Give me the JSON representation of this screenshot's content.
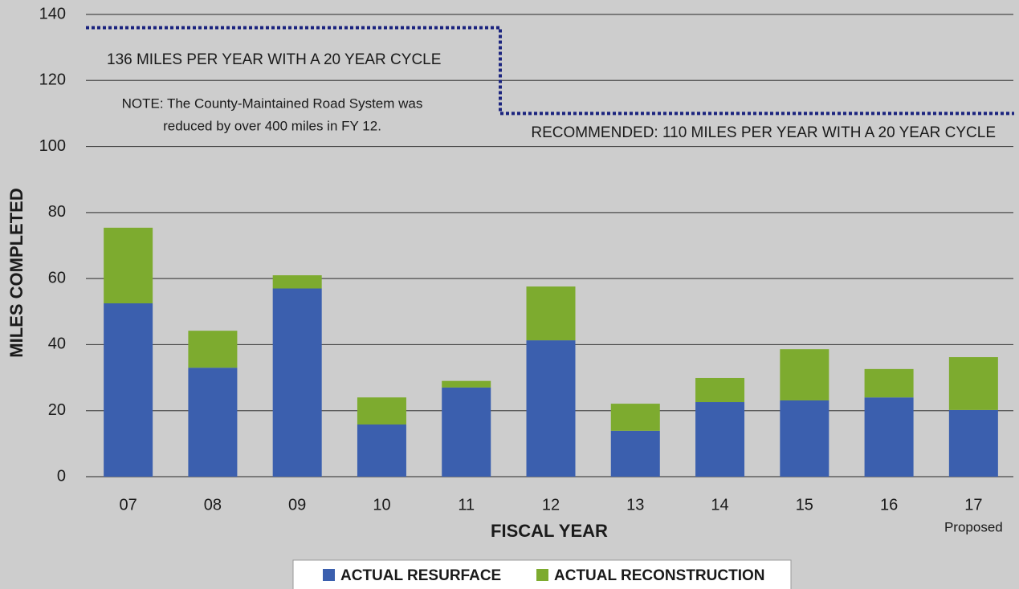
{
  "chart_data": {
    "type": "bar",
    "stacked": true,
    "y_label": "MILES COMPLETED",
    "x_label": "FISCAL YEAR",
    "categories": [
      "07",
      "08",
      "09",
      "10",
      "11",
      "12",
      "13",
      "14",
      "15",
      "16",
      "17"
    ],
    "category_note": {
      "index": 10,
      "text": "Proposed"
    },
    "series": [
      {
        "name": "ACTUAL RESURFACE",
        "color": "#3b5fae",
        "values": [
          52.5,
          33,
          57,
          15.8,
          27,
          41.3,
          13.9,
          22.6,
          23.1,
          24,
          20.2
        ]
      },
      {
        "name": "ACTUAL RECONSTRUCTION",
        "color": "#7dab2f",
        "values": [
          22.9,
          11.2,
          4,
          8.2,
          2,
          16.3,
          8.2,
          7.3,
          15.5,
          8.6,
          16
        ]
      }
    ],
    "ylim": [
      0,
      140
    ],
    "yticks": [
      0,
      20,
      40,
      60,
      80,
      100,
      120,
      140
    ],
    "grid": true,
    "reference_lines": [
      {
        "value": 136,
        "label": "136 MILES PER YEAR WITH A 20 YEAR CYCLE",
        "color": "#1a237e"
      },
      {
        "value": 110,
        "label": "RECOMMENDED: 110 MILES PER YEAR WITH A 20 YEAR CYCLE",
        "color": "#1a237e"
      }
    ],
    "annotation": [
      "NOTE: The County-Maintained Road System was",
      "reduced by over 400 miles in FY 12."
    ],
    "legend": "bottom"
  }
}
